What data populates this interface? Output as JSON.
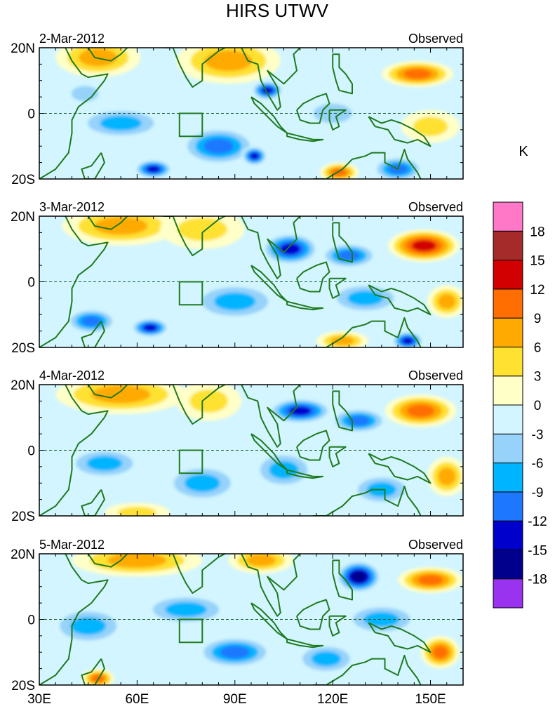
{
  "chart_data": {
    "type": "heatmap",
    "title": "HIRS UTWV",
    "units": "K",
    "x_ticks": [
      "30E",
      "60E",
      "90E",
      "120E",
      "150E"
    ],
    "x_tick_values": [
      30,
      60,
      90,
      120,
      150
    ],
    "xlim": [
      30,
      160
    ],
    "y_ticks": [
      "20N",
      "0",
      "20S"
    ],
    "y_tick_values": [
      20,
      0,
      -20
    ],
    "ylim": [
      -20,
      20
    ],
    "colorbar": {
      "colors": [
        "#9a33f0",
        "#00008c",
        "#0000cd",
        "#1e78ff",
        "#00b4ff",
        "#96d2fa",
        "#d2f5ff",
        "#ffffc8",
        "#ffe132",
        "#ffaa00",
        "#ff6e00",
        "#d20000",
        "#a52a2a",
        "#ff78c8"
      ],
      "labels": [
        "-18",
        "-15",
        "-12",
        "-9",
        "-6",
        "-3",
        "0",
        "3",
        "6",
        "9",
        "12",
        "15",
        "18"
      ]
    },
    "box_region": {
      "lon": [
        73,
        80
      ],
      "lat": [
        -7,
        0
      ]
    },
    "panels": [
      {
        "date": "2-Mar-2012",
        "label": "Observed",
        "blobs": [
          {
            "lon": 48,
            "lat": 17,
            "rlon": 13,
            "rlat": 6,
            "v": 7
          },
          {
            "lon": 88,
            "lat": 16,
            "rlon": 16,
            "rlat": 7,
            "v": 7
          },
          {
            "lon": 146,
            "lat": 12,
            "rlon": 11,
            "rlat": 4,
            "v": 12
          },
          {
            "lon": 44,
            "lat": 6,
            "rlon": 7,
            "rlat": 4,
            "v": -6
          },
          {
            "lon": 100,
            "lat": 7,
            "rlon": 5,
            "rlat": 3,
            "v": -13
          },
          {
            "lon": 55,
            "lat": -3,
            "rlon": 14,
            "rlat": 5,
            "v": -8
          },
          {
            "lon": 85,
            "lat": -10,
            "rlon": 12,
            "rlat": 6,
            "v": -10
          },
          {
            "lon": 65,
            "lat": -17,
            "rlon": 6,
            "rlat": 3,
            "v": -14
          },
          {
            "lon": 96,
            "lat": -13,
            "rlon": 4,
            "rlat": 3,
            "v": -13
          },
          {
            "lon": 122,
            "lat": -18,
            "rlon": 6,
            "rlat": 3,
            "v": 10
          },
          {
            "lon": 140,
            "lat": -17,
            "rlon": 8,
            "rlat": 4,
            "v": -12
          },
          {
            "lon": 150,
            "lat": -4,
            "rlon": 9,
            "rlat": 5,
            "v": 5
          },
          {
            "lon": 120,
            "lat": 0,
            "rlon": 10,
            "rlat": 5,
            "v": -4
          }
        ]
      },
      {
        "date": "3-Mar-2012",
        "label": "Observed",
        "blobs": [
          {
            "lon": 55,
            "lat": 17,
            "rlon": 18,
            "rlat": 6,
            "v": 7
          },
          {
            "lon": 80,
            "lat": 16,
            "rlon": 13,
            "rlat": 6,
            "v": 6
          },
          {
            "lon": 148,
            "lat": 11,
            "rlon": 11,
            "rlat": 5,
            "v": 13
          },
          {
            "lon": 107,
            "lat": 10,
            "rlon": 9,
            "rlat": 5,
            "v": -14
          },
          {
            "lon": 125,
            "lat": 8,
            "rlon": 9,
            "rlat": 4,
            "v": -10
          },
          {
            "lon": 46,
            "lat": -12,
            "rlon": 8,
            "rlat": 4,
            "v": -11
          },
          {
            "lon": 64,
            "lat": -14,
            "rlon": 6,
            "rlat": 3,
            "v": -13
          },
          {
            "lon": 90,
            "lat": -6,
            "rlon": 14,
            "rlat": 6,
            "v": -8
          },
          {
            "lon": 130,
            "lat": -5,
            "rlon": 12,
            "rlat": 5,
            "v": -7
          },
          {
            "lon": 155,
            "lat": -6,
            "rlon": 6,
            "rlat": 5,
            "v": 8
          },
          {
            "lon": 123,
            "lat": -18,
            "rlon": 8,
            "rlat": 3,
            "v": 8
          },
          {
            "lon": 143,
            "lat": -18,
            "rlon": 5,
            "rlat": 3,
            "v": -13
          }
        ]
      },
      {
        "date": "4-Mar-2012",
        "label": "Observed",
        "blobs": [
          {
            "lon": 55,
            "lat": 17,
            "rlon": 20,
            "rlat": 6,
            "v": 7
          },
          {
            "lon": 82,
            "lat": 15,
            "rlon": 10,
            "rlat": 6,
            "v": 5
          },
          {
            "lon": 147,
            "lat": 12,
            "rlon": 11,
            "rlat": 5,
            "v": 11
          },
          {
            "lon": 110,
            "lat": 12,
            "rlon": 10,
            "rlat": 4,
            "v": -13
          },
          {
            "lon": 128,
            "lat": 9,
            "rlon": 9,
            "rlat": 4,
            "v": -12
          },
          {
            "lon": 50,
            "lat": -4,
            "rlon": 12,
            "rlat": 5,
            "v": -9
          },
          {
            "lon": 80,
            "lat": -10,
            "rlon": 12,
            "rlat": 6,
            "v": -9
          },
          {
            "lon": 105,
            "lat": -6,
            "rlon": 10,
            "rlat": 6,
            "v": -9
          },
          {
            "lon": 135,
            "lat": -12,
            "rlon": 10,
            "rlat": 5,
            "v": -8
          },
          {
            "lon": 155,
            "lat": -8,
            "rlon": 6,
            "rlat": 6,
            "v": 9
          },
          {
            "lon": 60,
            "lat": -19,
            "rlon": 10,
            "rlat": 3,
            "v": 6
          }
        ]
      },
      {
        "date": "5-Mar-2012",
        "label": "Observed",
        "blobs": [
          {
            "lon": 60,
            "lat": 18,
            "rlon": 20,
            "rlat": 5,
            "v": 8
          },
          {
            "lon": 98,
            "lat": 18,
            "rlon": 10,
            "rlat": 4,
            "v": 9
          },
          {
            "lon": 128,
            "lat": 13,
            "rlon": 7,
            "rlat": 5,
            "v": -16
          },
          {
            "lon": 150,
            "lat": 12,
            "rlon": 10,
            "rlat": 4,
            "v": 11
          },
          {
            "lon": 45,
            "lat": -2,
            "rlon": 12,
            "rlat": 6,
            "v": -8
          },
          {
            "lon": 75,
            "lat": 3,
            "rlon": 14,
            "rlat": 5,
            "v": -7
          },
          {
            "lon": 90,
            "lat": -10,
            "rlon": 12,
            "rlat": 5,
            "v": -10
          },
          {
            "lon": 135,
            "lat": 0,
            "rlon": 12,
            "rlat": 5,
            "v": -8
          },
          {
            "lon": 153,
            "lat": -10,
            "rlon": 6,
            "rlat": 5,
            "v": 10
          },
          {
            "lon": 48,
            "lat": -18,
            "rlon": 5,
            "rlat": 3,
            "v": 12
          },
          {
            "lon": 118,
            "lat": -12,
            "rlon": 10,
            "rlat": 5,
            "v": -7
          }
        ]
      }
    ]
  }
}
